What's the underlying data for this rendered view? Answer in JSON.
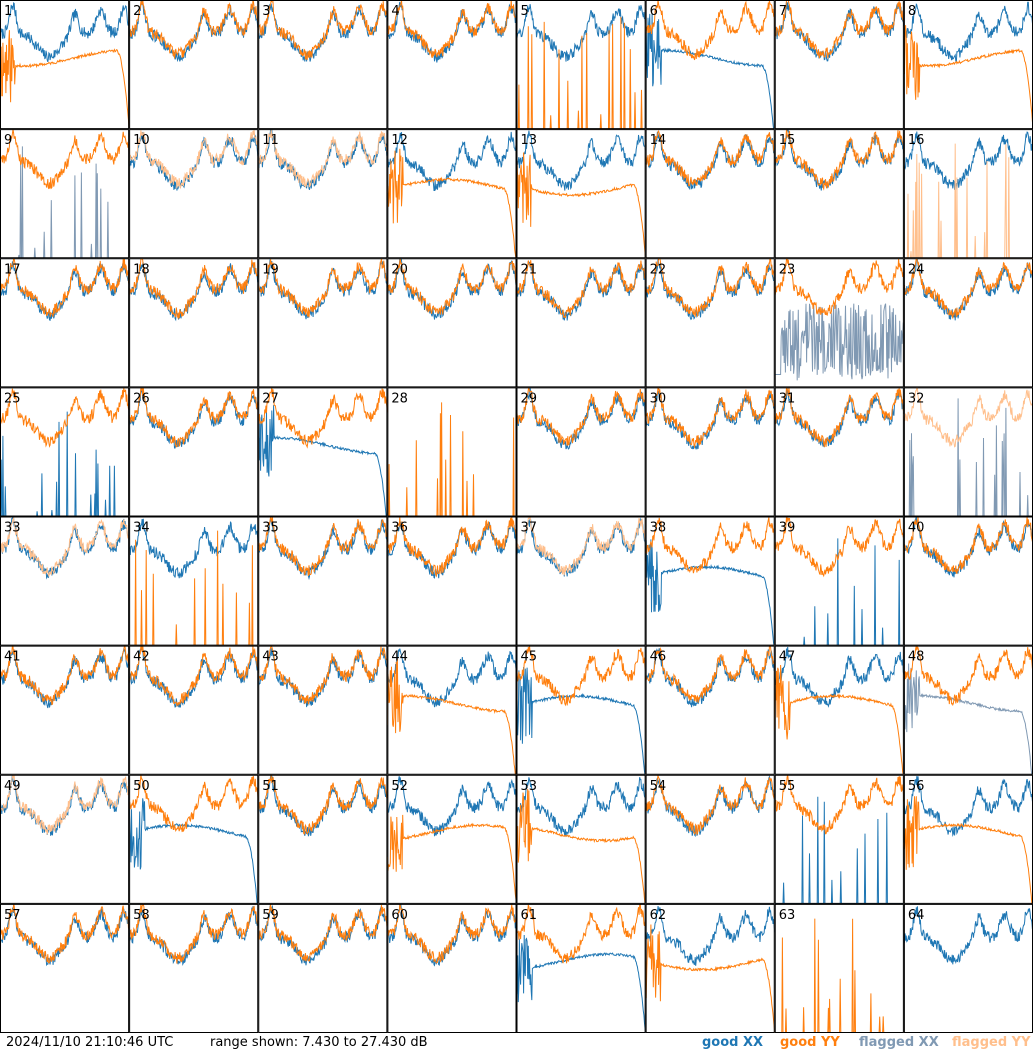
{
  "footer": {
    "timestamp": "2024/11/10 21:10:46 UTC",
    "range": "range shown: 7.430 to 27.430 dB",
    "legend": {
      "good_xx": "good XX",
      "good_yy": "good YY",
      "flagged_xx": "flagged XX",
      "flagged_yy": "flagged YY"
    }
  },
  "colors": {
    "good_xx": "#1f77b4",
    "good_yy": "#ff7f0e",
    "flagged_xx": "#8099b3",
    "flagged_yy": "#ffbf8c",
    "frame": "#000000"
  },
  "chart_data": {
    "type": "line",
    "layout": "8x8 small multiples, one panel per tile",
    "ylim": [
      7.43,
      27.43
    ],
    "yunit": "dB",
    "series_names": [
      "good XX",
      "good YY",
      "flagged XX",
      "flagged YY"
    ],
    "panels": [
      {
        "label": "1",
        "xx": "good",
        "yy": "good",
        "yy_profile": "rolloff",
        "xx_profile": "normal"
      },
      {
        "label": "2",
        "xx": "good",
        "yy": "good",
        "xx_profile": "normal",
        "yy_profile": "normal"
      },
      {
        "label": "3",
        "xx": "good",
        "yy": "good",
        "xx_profile": "normal",
        "yy_profile": "normal"
      },
      {
        "label": "4",
        "xx": "good",
        "yy": "good",
        "xx_profile": "normal",
        "yy_profile": "normal"
      },
      {
        "label": "5",
        "xx": "good",
        "yy": "good",
        "xx_profile": "normal",
        "yy_profile": "spikes"
      },
      {
        "label": "6",
        "xx": "good",
        "yy": "good",
        "xx_profile": "rolloff",
        "yy_profile": "normal"
      },
      {
        "label": "7",
        "xx": "good",
        "yy": "good",
        "xx_profile": "normal",
        "yy_profile": "normal"
      },
      {
        "label": "8",
        "xx": "good",
        "yy": "good",
        "xx_profile": "normal",
        "yy_profile": "rolloff"
      },
      {
        "label": "9",
        "xx": "flagged",
        "yy": "good",
        "xx_profile": "spikes",
        "yy_profile": "normal"
      },
      {
        "label": "10",
        "xx": "good",
        "yy": "flagged",
        "xx_profile": "normal",
        "yy_profile": "normal"
      },
      {
        "label": "11",
        "xx": "good",
        "yy": "flagged",
        "xx_profile": "normal",
        "yy_profile": "normal"
      },
      {
        "label": "12",
        "xx": "good",
        "yy": "good",
        "xx_profile": "normal",
        "yy_profile": "rolloff"
      },
      {
        "label": "13",
        "xx": "good",
        "yy": "good",
        "xx_profile": "normal",
        "yy_profile": "rolloff"
      },
      {
        "label": "14",
        "xx": "good",
        "yy": "good",
        "xx_profile": "normal",
        "yy_profile": "normal"
      },
      {
        "label": "15",
        "xx": "good",
        "yy": "good",
        "xx_profile": "normal",
        "yy_profile": "normal"
      },
      {
        "label": "16",
        "xx": "good",
        "yy": "flagged",
        "xx_profile": "normal",
        "yy_profile": "spikes"
      },
      {
        "label": "17",
        "xx": "good",
        "yy": "good",
        "xx_profile": "normal",
        "yy_profile": "normal"
      },
      {
        "label": "18",
        "xx": "good",
        "yy": "good",
        "xx_profile": "normal",
        "yy_profile": "normal"
      },
      {
        "label": "19",
        "xx": "good",
        "yy": "good",
        "xx_profile": "normal",
        "yy_profile": "normal"
      },
      {
        "label": "20",
        "xx": "good",
        "yy": "good",
        "xx_profile": "normal",
        "yy_profile": "normal"
      },
      {
        "label": "21",
        "xx": "good",
        "yy": "good",
        "xx_profile": "normal",
        "yy_profile": "normal"
      },
      {
        "label": "22",
        "xx": "good",
        "yy": "good",
        "xx_profile": "normal",
        "yy_profile": "normal"
      },
      {
        "label": "23",
        "xx": "flagged",
        "yy": "good",
        "xx_profile": "noisy",
        "yy_profile": "normal"
      },
      {
        "label": "24",
        "xx": "good",
        "yy": "good",
        "xx_profile": "normal",
        "yy_profile": "normal"
      },
      {
        "label": "25",
        "xx": "good",
        "yy": "good",
        "xx_profile": "spikes",
        "yy_profile": "normal"
      },
      {
        "label": "26",
        "xx": "good",
        "yy": "good",
        "xx_profile": "normal",
        "yy_profile": "normal"
      },
      {
        "label": "27",
        "xx": "good",
        "yy": "good",
        "xx_profile": "rolloff",
        "yy_profile": "normal"
      },
      {
        "label": "28",
        "xx": "good",
        "yy": "good",
        "xx_profile": "flat",
        "yy_profile": "spikes"
      },
      {
        "label": "29",
        "xx": "good",
        "yy": "good",
        "xx_profile": "normal",
        "yy_profile": "normal"
      },
      {
        "label": "30",
        "xx": "good",
        "yy": "good",
        "xx_profile": "normal",
        "yy_profile": "normal"
      },
      {
        "label": "31",
        "xx": "good",
        "yy": "good",
        "xx_profile": "normal",
        "yy_profile": "normal"
      },
      {
        "label": "32",
        "xx": "flagged",
        "yy": "flagged",
        "xx_profile": "spikes",
        "yy_profile": "normal"
      },
      {
        "label": "33",
        "xx": "good",
        "yy": "flagged",
        "xx_profile": "normal",
        "yy_profile": "normal"
      },
      {
        "label": "34",
        "xx": "good",
        "yy": "good",
        "xx_profile": "normal",
        "yy_profile": "spikes"
      },
      {
        "label": "35",
        "xx": "good",
        "yy": "good",
        "xx_profile": "normal",
        "yy_profile": "normal"
      },
      {
        "label": "36",
        "xx": "good",
        "yy": "good",
        "xx_profile": "normal",
        "yy_profile": "normal"
      },
      {
        "label": "37",
        "xx": "good",
        "yy": "flagged",
        "xx_profile": "normal",
        "yy_profile": "normal"
      },
      {
        "label": "38",
        "xx": "good",
        "yy": "good",
        "xx_profile": "rolloff",
        "yy_profile": "normal"
      },
      {
        "label": "39",
        "xx": "good",
        "yy": "good",
        "xx_profile": "spikes",
        "yy_profile": "normal"
      },
      {
        "label": "40",
        "xx": "good",
        "yy": "good",
        "xx_profile": "normal",
        "yy_profile": "normal"
      },
      {
        "label": "41",
        "xx": "good",
        "yy": "good",
        "xx_profile": "normal",
        "yy_profile": "normal"
      },
      {
        "label": "42",
        "xx": "good",
        "yy": "good",
        "xx_profile": "normal",
        "yy_profile": "normal"
      },
      {
        "label": "43",
        "xx": "good",
        "yy": "good",
        "xx_profile": "normal",
        "yy_profile": "normal"
      },
      {
        "label": "44",
        "xx": "good",
        "yy": "good",
        "xx_profile": "normal",
        "yy_profile": "rolloff"
      },
      {
        "label": "45",
        "xx": "good",
        "yy": "good",
        "xx_profile": "rolloff",
        "yy_profile": "normal"
      },
      {
        "label": "46",
        "xx": "good",
        "yy": "good",
        "xx_profile": "normal",
        "yy_profile": "normal"
      },
      {
        "label": "47",
        "xx": "good",
        "yy": "good",
        "xx_profile": "normal",
        "yy_profile": "rolloff"
      },
      {
        "label": "48",
        "xx": "flagged",
        "yy": "good",
        "xx_profile": "rolloff",
        "yy_profile": "normal"
      },
      {
        "label": "49",
        "xx": "good",
        "yy": "flagged",
        "xx_profile": "normal",
        "yy_profile": "normal"
      },
      {
        "label": "50",
        "xx": "good",
        "yy": "good",
        "xx_profile": "rolloff",
        "yy_profile": "normal"
      },
      {
        "label": "51",
        "xx": "good",
        "yy": "good",
        "xx_profile": "normal",
        "yy_profile": "normal"
      },
      {
        "label": "52",
        "xx": "good",
        "yy": "good",
        "xx_profile": "normal",
        "yy_profile": "rolloff"
      },
      {
        "label": "53",
        "xx": "good",
        "yy": "good",
        "xx_profile": "normal",
        "yy_profile": "rolloff"
      },
      {
        "label": "54",
        "xx": "good",
        "yy": "good",
        "xx_profile": "normal",
        "yy_profile": "normal"
      },
      {
        "label": "55",
        "xx": "good",
        "yy": "good",
        "xx_profile": "spikes",
        "yy_profile": "normal"
      },
      {
        "label": "56",
        "xx": "good",
        "yy": "good",
        "xx_profile": "normal",
        "yy_profile": "rolloff"
      },
      {
        "label": "57",
        "xx": "good",
        "yy": "good",
        "xx_profile": "normal",
        "yy_profile": "normal"
      },
      {
        "label": "58",
        "xx": "good",
        "yy": "good",
        "xx_profile": "normal",
        "yy_profile": "normal"
      },
      {
        "label": "59",
        "xx": "good",
        "yy": "good",
        "xx_profile": "normal",
        "yy_profile": "normal"
      },
      {
        "label": "60",
        "xx": "good",
        "yy": "good",
        "xx_profile": "normal",
        "yy_profile": "normal"
      },
      {
        "label": "61",
        "xx": "good",
        "yy": "good",
        "xx_profile": "rolloff",
        "yy_profile": "normal"
      },
      {
        "label": "62",
        "xx": "good",
        "yy": "good",
        "xx_profile": "normal",
        "yy_profile": "rolloff"
      },
      {
        "label": "63",
        "xx": "good",
        "yy": "good",
        "xx_profile": "flat",
        "yy_profile": "spikes"
      },
      {
        "label": "64",
        "xx": "good",
        "yy": "good",
        "xx_profile": "normal",
        "yy_profile": "flat"
      }
    ]
  }
}
